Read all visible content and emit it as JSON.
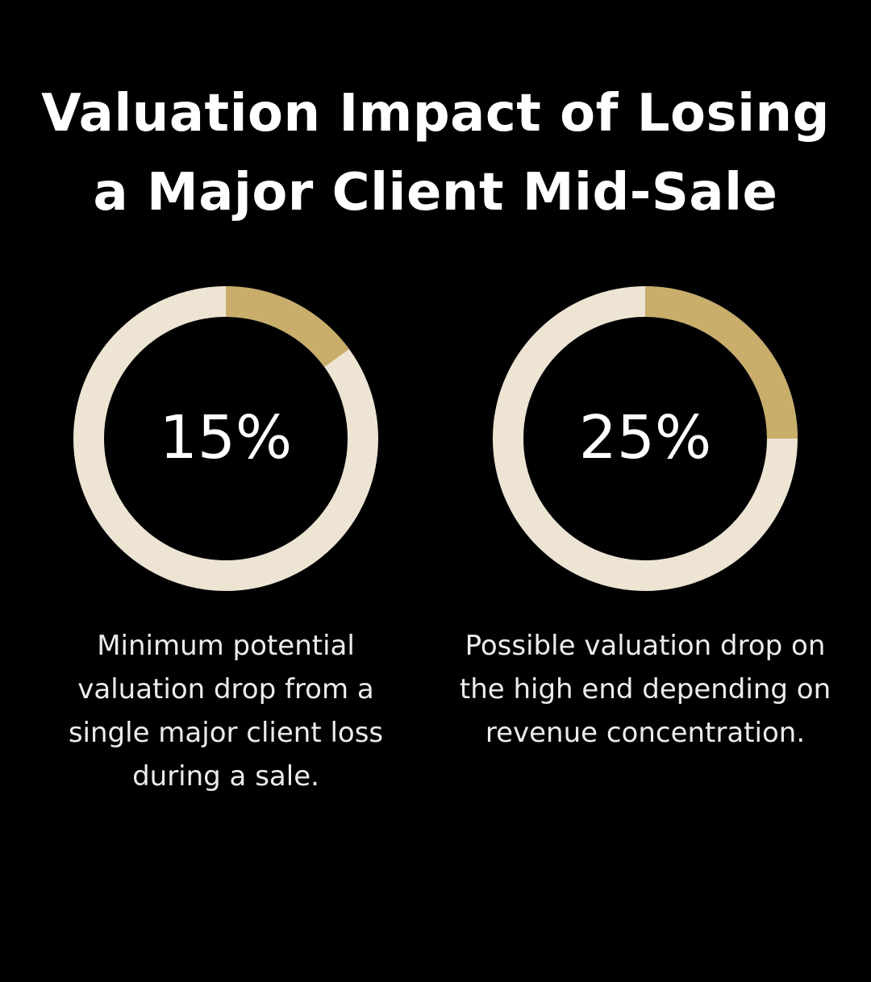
{
  "title": {
    "line1": "Valuation Impact of Losing",
    "line2": "a Major Client Mid-Sale"
  },
  "colors": {
    "background": "#000000",
    "track": "#ede4d3",
    "accent": "#c8ad6b",
    "text": "#ffffff"
  },
  "chart_data": [
    {
      "type": "pie",
      "variant": "donut",
      "value": 15,
      "max": 100,
      "label": "15%",
      "caption": "Minimum potential valuation drop from a single major client loss during a sale."
    },
    {
      "type": "pie",
      "variant": "donut",
      "value": 25,
      "max": 100,
      "label": "25%",
      "caption": "Possible valuation drop on the high end depending on revenue concentration."
    }
  ]
}
